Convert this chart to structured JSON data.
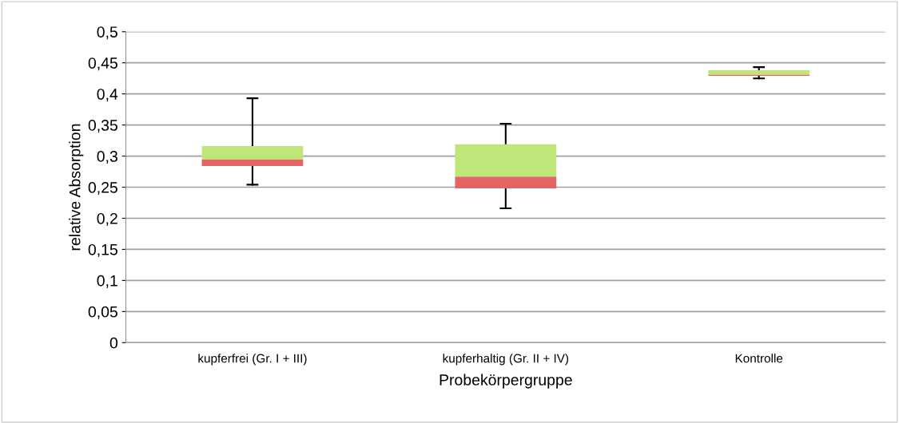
{
  "chart_data": {
    "type": "box",
    "xlabel": "Probekörpergruppe",
    "ylabel": "relative Absorption",
    "categories": [
      "kupferfrei (Gr. I + III)",
      "kupferhaltig (Gr. II + IV)",
      "Kontrolle"
    ],
    "boxes": [
      {
        "low": 0.254,
        "q1": 0.284,
        "median": 0.295,
        "q3": 0.316,
        "high": 0.393
      },
      {
        "low": 0.216,
        "q1": 0.248,
        "median": 0.267,
        "q3": 0.319,
        "high": 0.352
      },
      {
        "low": 0.425,
        "q1": 0.429,
        "median": 0.431,
        "q3": 0.438,
        "high": 0.443
      }
    ],
    "ylim": [
      0,
      0.5
    ],
    "yticks": [
      {
        "value": 0,
        "label": "0"
      },
      {
        "value": 0.05,
        "label": "0,05"
      },
      {
        "value": 0.1,
        "label": "0,1"
      },
      {
        "value": 0.15,
        "label": "0,15"
      },
      {
        "value": 0.2,
        "label": "0,2"
      },
      {
        "value": 0.25,
        "label": "0,25"
      },
      {
        "value": 0.3,
        "label": "0,3"
      },
      {
        "value": 0.35,
        "label": "0,35"
      },
      {
        "value": 0.4,
        "label": "0,4"
      },
      {
        "value": 0.45,
        "label": "0,45"
      },
      {
        "value": 0.5,
        "label": "0,5"
      }
    ],
    "grid": "y"
  }
}
